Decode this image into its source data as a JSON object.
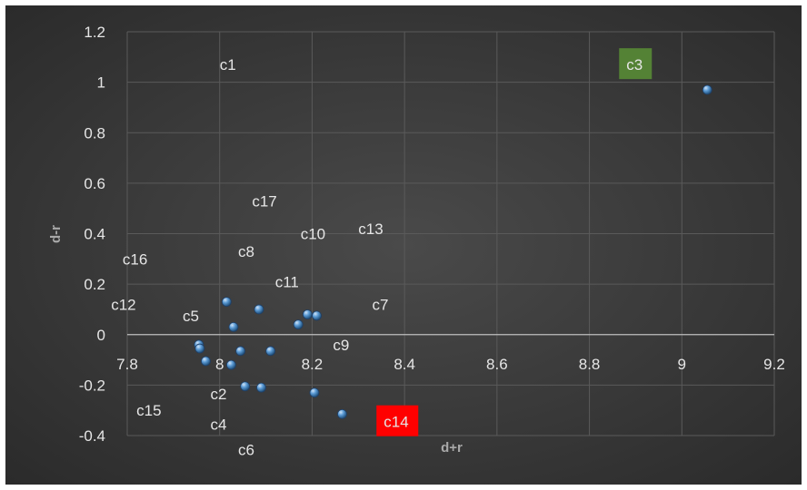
{
  "chart_data": {
    "type": "scatter",
    "title": "",
    "xlabel": "d+r",
    "ylabel": "d-r",
    "xlim": [
      7.8,
      9.2
    ],
    "ylim": [
      -0.4,
      1.2
    ],
    "x_ticks": [
      "7.8",
      "8",
      "8.2",
      "8.4",
      "8.6",
      "8.8",
      "9",
      "9.2"
    ],
    "y_ticks": [
      "-0.4",
      "-0.2",
      "0",
      "0.2",
      "0.4",
      "0.6",
      "0.8",
      "1",
      "1.2"
    ],
    "grid": true,
    "legend": "none",
    "colors": {
      "background": "#3b3b3b",
      "gridline": "#5a5a5a",
      "zero_axis": "#bfbfbf",
      "marker": "#5b9bd5",
      "highlight_green": "#548235",
      "highlight_red": "#ff0000"
    },
    "points": [
      {
        "x": 9.055,
        "y": 0.97
      },
      {
        "x": 8.015,
        "y": 0.13
      },
      {
        "x": 8.085,
        "y": 0.1
      },
      {
        "x": 8.19,
        "y": 0.08
      },
      {
        "x": 8.21,
        "y": 0.075
      },
      {
        "x": 8.17,
        "y": 0.04
      },
      {
        "x": 8.03,
        "y": 0.03
      },
      {
        "x": 7.955,
        "y": -0.04
      },
      {
        "x": 7.957,
        "y": -0.055
      },
      {
        "x": 8.045,
        "y": -0.065
      },
      {
        "x": 8.11,
        "y": -0.065
      },
      {
        "x": 7.97,
        "y": -0.105
      },
      {
        "x": 8.025,
        "y": -0.12
      },
      {
        "x": 8.055,
        "y": -0.205
      },
      {
        "x": 8.09,
        "y": -0.21
      },
      {
        "x": 8.205,
        "y": -0.23
      },
      {
        "x": 8.265,
        "y": -0.315
      }
    ],
    "point_labels": [
      {
        "text": "c1",
        "x": 8.0,
        "y": 1.07
      },
      {
        "text": "c3",
        "x": 8.88,
        "y": 1.07,
        "highlight": "green"
      },
      {
        "text": "c17",
        "x": 8.07,
        "y": 0.53
      },
      {
        "text": "c10",
        "x": 8.175,
        "y": 0.4
      },
      {
        "text": "c13",
        "x": 8.3,
        "y": 0.42
      },
      {
        "text": "c8",
        "x": 8.04,
        "y": 0.33
      },
      {
        "text": "c16",
        "x": 7.79,
        "y": 0.3
      },
      {
        "text": "c11",
        "x": 8.12,
        "y": 0.21
      },
      {
        "text": "c12",
        "x": 7.765,
        "y": 0.12
      },
      {
        "text": "c7",
        "x": 8.33,
        "y": 0.12
      },
      {
        "text": "c5",
        "x": 7.92,
        "y": 0.075
      },
      {
        "text": "c9",
        "x": 8.245,
        "y": -0.04
      },
      {
        "text": "c2",
        "x": 7.98,
        "y": -0.235
      },
      {
        "text": "c15",
        "x": 7.82,
        "y": -0.3
      },
      {
        "text": "c14",
        "x": 8.355,
        "y": -0.345,
        "highlight": "red"
      },
      {
        "text": "c4",
        "x": 7.98,
        "y": -0.355
      },
      {
        "text": "c6",
        "x": 8.04,
        "y": -0.455
      }
    ]
  }
}
